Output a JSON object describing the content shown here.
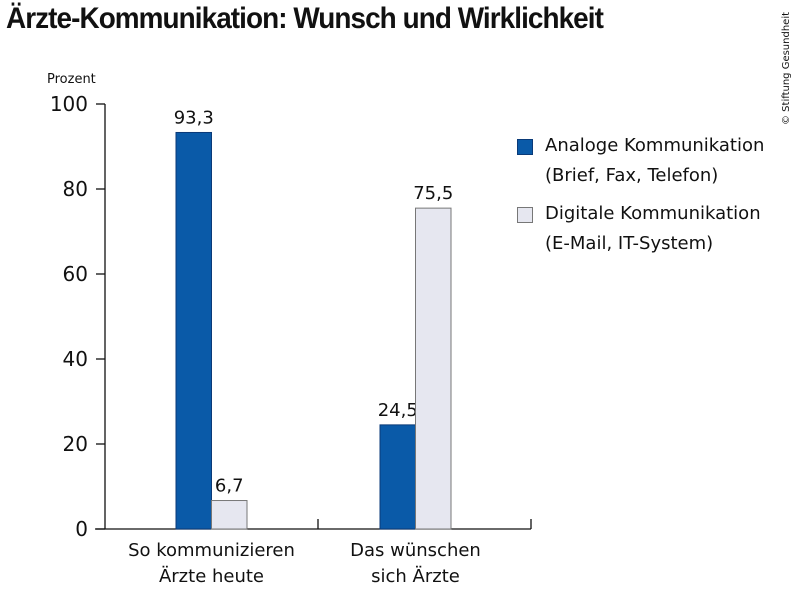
{
  "chart_data": {
    "type": "bar",
    "title": "Ärzte-Kommunikation: Wunsch und Wirklichkeit",
    "ylabel": "Prozent",
    "xlabel": "",
    "ylim": [
      0,
      100
    ],
    "yticks": [
      "0",
      "20",
      "40",
      "60",
      "80",
      "100"
    ],
    "categories": [
      {
        "line1": "So kommunizieren",
        "line2": "Ärzte heute"
      },
      {
        "line1": "Das wünschen",
        "line2": "sich Ärzte"
      }
    ],
    "series": [
      {
        "name": "Analoge Kommunikation",
        "detail": "(Brief, Fax, Telefon)",
        "values": [
          93.3,
          24.5
        ],
        "labels": [
          "93,3",
          "24,5"
        ],
        "color": "#0a5aa8",
        "stroke": "#0a3a78"
      },
      {
        "name": "Digitale Kommunikation",
        "detail": "(E-Mail, IT-System)",
        "values": [
          6.7,
          75.5
        ],
        "labels": [
          "6,7",
          "75,5"
        ],
        "color": "#e6e7f0",
        "stroke": "#777777"
      }
    ],
    "legend_position": "right",
    "grid": false
  },
  "copyright": "© Stiftung Gesundheit"
}
